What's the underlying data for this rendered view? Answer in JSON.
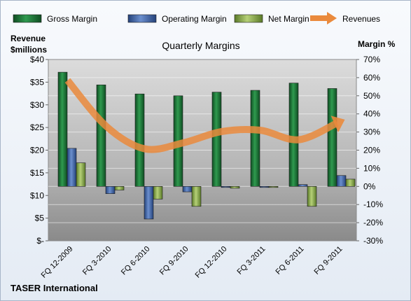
{
  "chart_data": {
    "type": "bar",
    "title": "Quarterly Margins",
    "categories": [
      "FQ 12-2009",
      "FQ 3-2010",
      "FQ 6-2010",
      "FQ 9-2010",
      "FQ 12-2010",
      "FQ 3-2011",
      "FQ 6-2011",
      "FQ 9-2011"
    ],
    "series": [
      {
        "name": "Gross Margin",
        "axis": "right",
        "values": [
          63,
          56,
          51,
          50,
          52,
          53,
          57,
          54
        ],
        "color": "#1f7a3a"
      },
      {
        "name": "Operating Margin",
        "axis": "right",
        "values": [
          21,
          -4,
          -18,
          -3,
          0,
          0,
          1,
          6
        ],
        "color": "#3f66a8"
      },
      {
        "name": "Net Margin",
        "axis": "right",
        "values": [
          13,
          -2,
          -7,
          -11,
          -1,
          0,
          -11,
          4
        ],
        "color": "#8cad4a"
      },
      {
        "name": "Revenues",
        "type": "line",
        "axis": "left",
        "values": [
          35.4,
          25.3,
          20.3,
          21.6,
          24.1,
          24.4,
          22.3,
          26.0
        ],
        "color": "#ea8a3c"
      }
    ],
    "y_left": {
      "label_line1": "Revenue",
      "label_line2": "$millions",
      "ylim": [
        0,
        40
      ],
      "ticks": [
        "$-",
        "$5",
        "$10",
        "$15",
        "$20",
        "$25",
        "$30",
        "$35",
        "$40"
      ]
    },
    "y_right": {
      "label": "Margin %",
      "ylim": [
        -30,
        70
      ],
      "ticks": [
        "-30%",
        "-20%",
        "-10%",
        "0%",
        "10%",
        "20%",
        "30%",
        "40%",
        "50%",
        "60%",
        "70%"
      ]
    },
    "legend": "top",
    "grid": true
  },
  "footer": {
    "company": "TASER International"
  }
}
